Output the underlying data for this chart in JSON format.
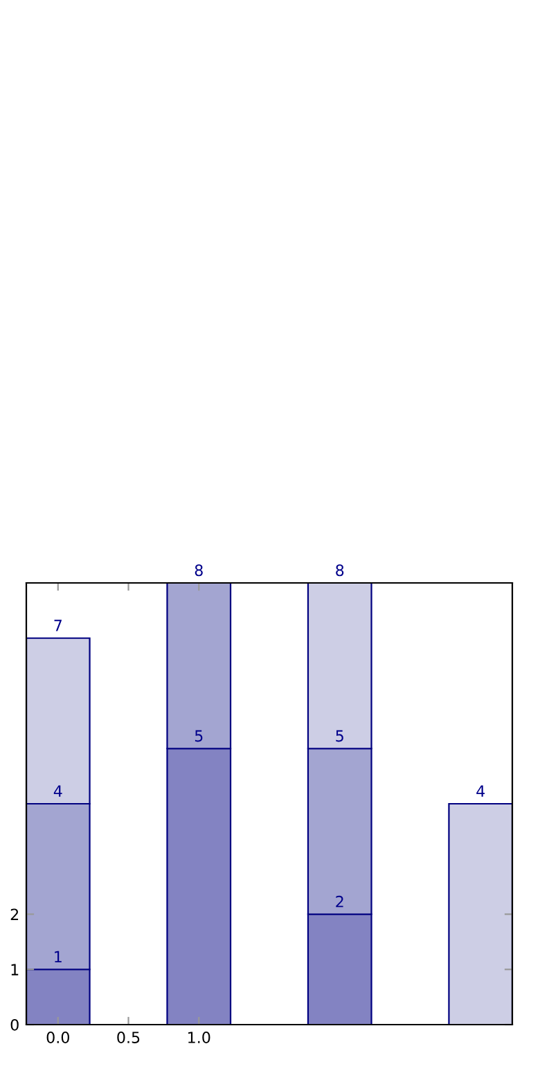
{
  "chart_data": {
    "type": "bar",
    "stacked": true,
    "x": [
      0,
      1,
      2,
      3
    ],
    "series": [
      {
        "color": "#8383c2",
        "values": [
          1,
          5,
          2,
          null
        ]
      },
      {
        "color": "#a3a5d1",
        "values": [
          3,
          3,
          3,
          null
        ]
      },
      {
        "color": "#cdcee5",
        "values": [
          3,
          null,
          3,
          4
        ]
      }
    ],
    "annotations": [
      {
        "text": "1",
        "x": 0,
        "y": 1
      },
      {
        "text": "5",
        "x": 1,
        "y": 5
      },
      {
        "text": "2",
        "x": 2,
        "y": 2
      },
      {
        "text": "4",
        "x": 0,
        "y": 4
      },
      {
        "text": "8",
        "x": 1,
        "y": 8
      },
      {
        "text": "5",
        "x": 2,
        "y": 5
      },
      {
        "text": "7",
        "x": 0,
        "y": 7
      },
      {
        "text": "8",
        "x": 2,
        "y": 8
      },
      {
        "text": "4",
        "x": 3,
        "y": 4
      }
    ],
    "xlim": [
      -0.225,
      3.225
    ],
    "ylim": [
      0,
      8
    ],
    "xticks": [
      {
        "value": 0,
        "label": "0.0"
      },
      {
        "value": 0.5,
        "label": "0.5"
      },
      {
        "value": 1,
        "label": "1.0"
      }
    ],
    "yticks": [
      0,
      1,
      2
    ],
    "grid": false,
    "legend": false
  }
}
